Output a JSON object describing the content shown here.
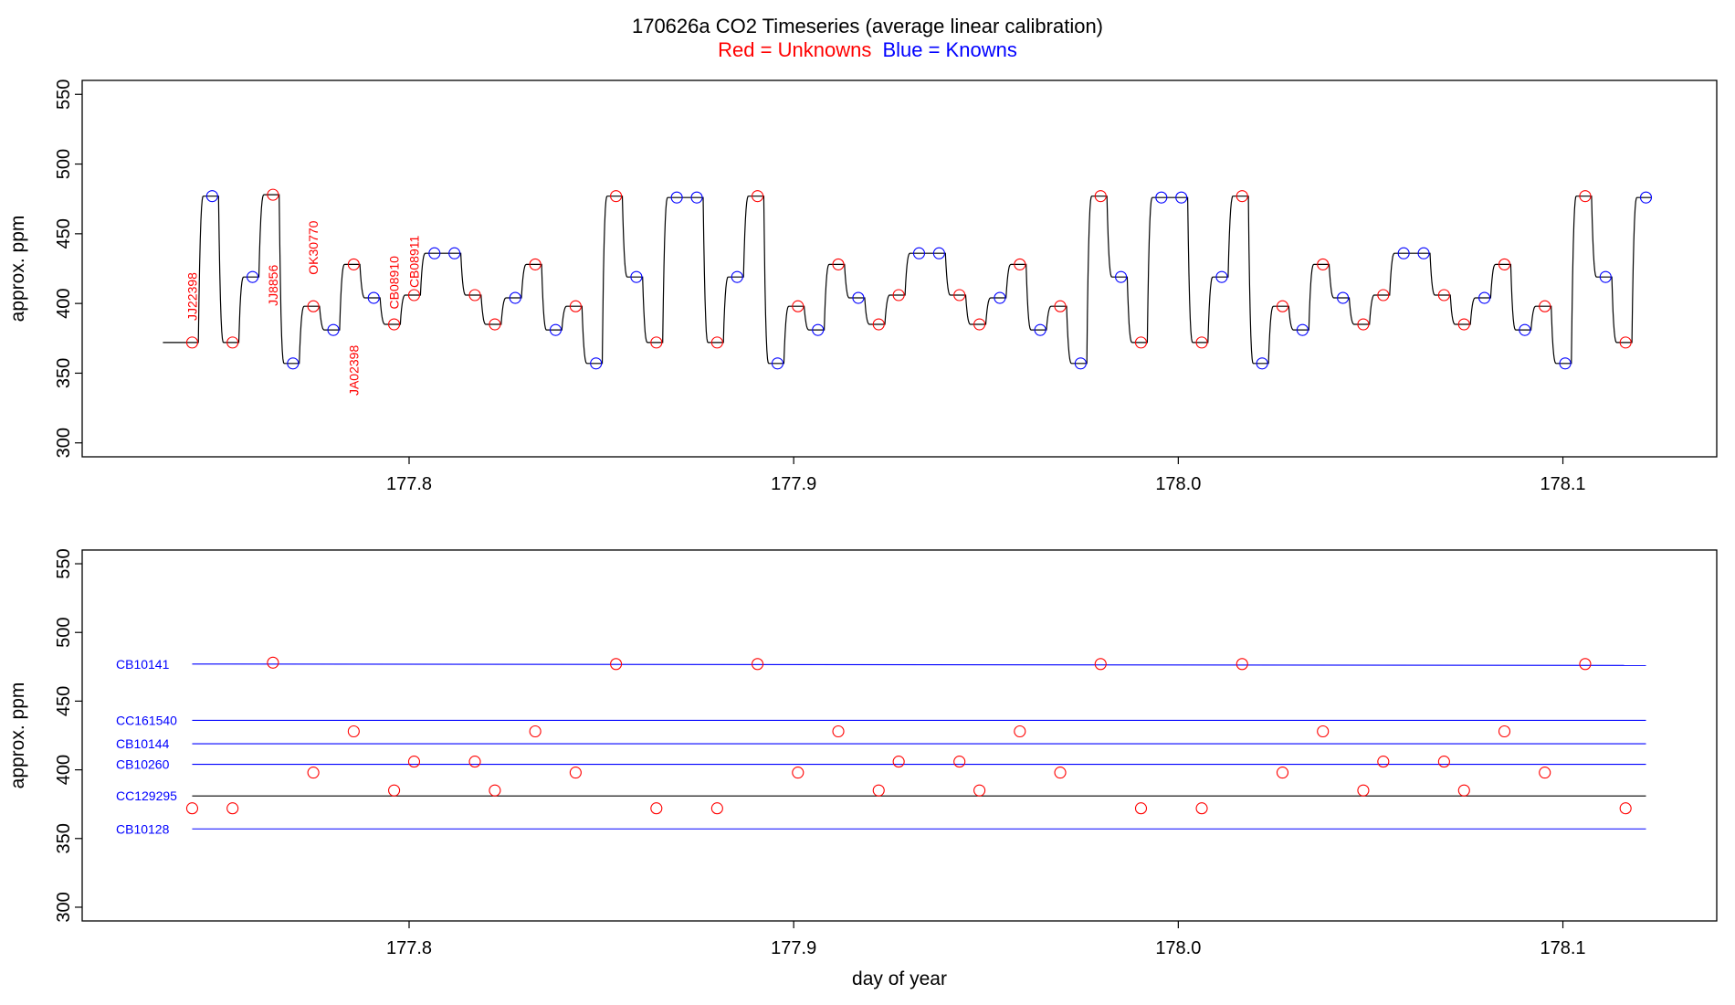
{
  "title": "170626a   CO2 Timeseries (average linear calibration)",
  "subtitle": {
    "unknowns": "Red = Unknowns",
    "knowns": "Blue = Knowns"
  },
  "colors": {
    "unknown": "#ff0000",
    "known": "#0000ff",
    "trace": "#000000",
    "axis": "#000000"
  },
  "chart_data": [
    {
      "type": "line",
      "xlabel": "",
      "ylabel": "approx. ppm",
      "xlim": [
        177.715,
        178.14
      ],
      "ylim": [
        290,
        560
      ],
      "xticks": [
        "177.8",
        "177.9",
        "178.0",
        "178.1"
      ],
      "xtick_values": [
        177.8,
        177.9,
        178.0,
        178.1
      ],
      "yticks": [
        "300",
        "350",
        "400",
        "450",
        "500",
        "550"
      ],
      "ytick_values": [
        300,
        350,
        400,
        450,
        500,
        550
      ],
      "trace_start": 177.736,
      "samples": [
        {
          "x": 177.7436,
          "y": 372,
          "kind": "unknown"
        },
        {
          "x": 177.7488,
          "y": 477,
          "kind": "known"
        },
        {
          "x": 177.7541,
          "y": 372,
          "kind": "unknown"
        },
        {
          "x": 177.7593,
          "y": 419,
          "kind": "known"
        },
        {
          "x": 177.7646,
          "y": 478,
          "kind": "unknown"
        },
        {
          "x": 177.7698,
          "y": 357,
          "kind": "known"
        },
        {
          "x": 177.7751,
          "y": 398,
          "kind": "unknown"
        },
        {
          "x": 177.7803,
          "y": 381,
          "kind": "known"
        },
        {
          "x": 177.7856,
          "y": 428,
          "kind": "unknown"
        },
        {
          "x": 177.7908,
          "y": 404,
          "kind": "known"
        },
        {
          "x": 177.7961,
          "y": 385,
          "kind": "unknown"
        },
        {
          "x": 177.8013,
          "y": 406,
          "kind": "unknown"
        },
        {
          "x": 177.8066,
          "y": 436,
          "kind": "known"
        },
        {
          "x": 177.8118,
          "y": 436,
          "kind": "known"
        },
        {
          "x": 177.8171,
          "y": 406,
          "kind": "unknown"
        },
        {
          "x": 177.8223,
          "y": 385,
          "kind": "unknown"
        },
        {
          "x": 177.8276,
          "y": 404,
          "kind": "known"
        },
        {
          "x": 177.8328,
          "y": 428,
          "kind": "unknown"
        },
        {
          "x": 177.8381,
          "y": 381,
          "kind": "known"
        },
        {
          "x": 177.8433,
          "y": 398,
          "kind": "unknown"
        },
        {
          "x": 177.8486,
          "y": 357,
          "kind": "known"
        },
        {
          "x": 177.8538,
          "y": 477,
          "kind": "unknown"
        },
        {
          "x": 177.8591,
          "y": 419,
          "kind": "known"
        },
        {
          "x": 177.8643,
          "y": 372,
          "kind": "unknown"
        },
        {
          "x": 177.8696,
          "y": 476,
          "kind": "known"
        },
        {
          "x": 177.8748,
          "y": 476,
          "kind": "known"
        },
        {
          "x": 177.8801,
          "y": 372,
          "kind": "unknown"
        },
        {
          "x": 177.8853,
          "y": 419,
          "kind": "known"
        },
        {
          "x": 177.8906,
          "y": 477,
          "kind": "unknown"
        },
        {
          "x": 177.8958,
          "y": 357,
          "kind": "known"
        },
        {
          "x": 177.9011,
          "y": 398,
          "kind": "unknown"
        },
        {
          "x": 177.9063,
          "y": 381,
          "kind": "known"
        },
        {
          "x": 177.9116,
          "y": 428,
          "kind": "unknown"
        },
        {
          "x": 177.9168,
          "y": 404,
          "kind": "known"
        },
        {
          "x": 177.9221,
          "y": 385,
          "kind": "unknown"
        },
        {
          "x": 177.9273,
          "y": 406,
          "kind": "unknown"
        },
        {
          "x": 177.9326,
          "y": 436,
          "kind": "known"
        },
        {
          "x": 177.9378,
          "y": 436,
          "kind": "known"
        },
        {
          "x": 177.9431,
          "y": 406,
          "kind": "unknown"
        },
        {
          "x": 177.9483,
          "y": 385,
          "kind": "unknown"
        },
        {
          "x": 177.9536,
          "y": 404,
          "kind": "known"
        },
        {
          "x": 177.9588,
          "y": 428,
          "kind": "unknown"
        },
        {
          "x": 177.9641,
          "y": 381,
          "kind": "known"
        },
        {
          "x": 177.9693,
          "y": 398,
          "kind": "unknown"
        },
        {
          "x": 177.9746,
          "y": 357,
          "kind": "known"
        },
        {
          "x": 177.9798,
          "y": 477,
          "kind": "unknown"
        },
        {
          "x": 177.9851,
          "y": 419,
          "kind": "known"
        },
        {
          "x": 177.9903,
          "y": 372,
          "kind": "unknown"
        },
        {
          "x": 177.9956,
          "y": 476,
          "kind": "known"
        },
        {
          "x": 178.0008,
          "y": 476,
          "kind": "known"
        },
        {
          "x": 178.0061,
          "y": 372,
          "kind": "unknown"
        },
        {
          "x": 178.0113,
          "y": 419,
          "kind": "known"
        },
        {
          "x": 178.0166,
          "y": 477,
          "kind": "unknown"
        },
        {
          "x": 178.0218,
          "y": 357,
          "kind": "known"
        },
        {
          "x": 178.0271,
          "y": 398,
          "kind": "unknown"
        },
        {
          "x": 178.0323,
          "y": 381,
          "kind": "known"
        },
        {
          "x": 178.0376,
          "y": 428,
          "kind": "unknown"
        },
        {
          "x": 178.0428,
          "y": 404,
          "kind": "known"
        },
        {
          "x": 178.0481,
          "y": 385,
          "kind": "unknown"
        },
        {
          "x": 178.0533,
          "y": 406,
          "kind": "unknown"
        },
        {
          "x": 178.0586,
          "y": 436,
          "kind": "known"
        },
        {
          "x": 178.0638,
          "y": 436,
          "kind": "known"
        },
        {
          "x": 178.0691,
          "y": 406,
          "kind": "unknown"
        },
        {
          "x": 178.0743,
          "y": 385,
          "kind": "unknown"
        },
        {
          "x": 178.0796,
          "y": 404,
          "kind": "known"
        },
        {
          "x": 178.0848,
          "y": 428,
          "kind": "unknown"
        },
        {
          "x": 178.0901,
          "y": 381,
          "kind": "known"
        },
        {
          "x": 178.0953,
          "y": 398,
          "kind": "unknown"
        },
        {
          "x": 178.1006,
          "y": 357,
          "kind": "known"
        },
        {
          "x": 178.1058,
          "y": 477,
          "kind": "unknown"
        },
        {
          "x": 178.1111,
          "y": 419,
          "kind": "known"
        },
        {
          "x": 178.1163,
          "y": 372,
          "kind": "unknown"
        },
        {
          "x": 178.1216,
          "y": 476,
          "kind": "known"
        }
      ],
      "annotations": [
        {
          "text": "JJ22398",
          "x": 177.7436,
          "y": 405
        },
        {
          "text": "JJ8856",
          "x": 177.7646,
          "y": 413
        },
        {
          "text": "OK30770",
          "x": 177.7751,
          "y": 440
        },
        {
          "text": "JA02398",
          "x": 177.7856,
          "y": 352
        },
        {
          "text": "CB08910",
          "x": 177.7961,
          "y": 415
        },
        {
          "text": "CB08911",
          "x": 177.8013,
          "y": 430
        }
      ]
    },
    {
      "type": "scatter",
      "xlabel": "day of year",
      "ylabel": "approx. ppm",
      "xlim": [
        177.715,
        178.14
      ],
      "ylim": [
        290,
        560
      ],
      "xticks": [
        "177.8",
        "177.9",
        "178.0",
        "178.1"
      ],
      "xtick_values": [
        177.8,
        177.9,
        178.0,
        178.1
      ],
      "yticks": [
        "300",
        "350",
        "400",
        "450",
        "500",
        "550"
      ],
      "ytick_values": [
        300,
        350,
        400,
        450,
        500,
        550
      ],
      "reference_lines": [
        {
          "name": "CB10141",
          "y": 477,
          "y_end": 476,
          "color": "#0000ff"
        },
        {
          "name": "CC161540",
          "y": 436,
          "y_end": 436,
          "color": "#0000ff"
        },
        {
          "name": "CB10144",
          "y": 419,
          "y_end": 419,
          "color": "#0000ff"
        },
        {
          "name": "CB10260",
          "y": 404,
          "y_end": 404,
          "color": "#0000ff"
        },
        {
          "name": "CC129295",
          "y": 381,
          "y_end": 381,
          "color": "#000000"
        },
        {
          "name": "CB10128",
          "y": 357,
          "y_end": 357,
          "color": "#0000ff"
        }
      ],
      "ref_x_range": [
        177.7436,
        178.1216
      ],
      "points": [
        {
          "x": 177.7436,
          "y": 372
        },
        {
          "x": 177.7541,
          "y": 372
        },
        {
          "x": 177.7646,
          "y": 478
        },
        {
          "x": 177.7751,
          "y": 398
        },
        {
          "x": 177.7856,
          "y": 428
        },
        {
          "x": 177.7961,
          "y": 385
        },
        {
          "x": 177.8013,
          "y": 406
        },
        {
          "x": 177.8171,
          "y": 406
        },
        {
          "x": 177.8223,
          "y": 385
        },
        {
          "x": 177.8328,
          "y": 428
        },
        {
          "x": 177.8433,
          "y": 398
        },
        {
          "x": 177.8538,
          "y": 477
        },
        {
          "x": 177.8643,
          "y": 372
        },
        {
          "x": 177.8801,
          "y": 372
        },
        {
          "x": 177.8906,
          "y": 477
        },
        {
          "x": 177.9011,
          "y": 398
        },
        {
          "x": 177.9116,
          "y": 428
        },
        {
          "x": 177.9221,
          "y": 385
        },
        {
          "x": 177.9273,
          "y": 406
        },
        {
          "x": 177.9431,
          "y": 406
        },
        {
          "x": 177.9483,
          "y": 385
        },
        {
          "x": 177.9588,
          "y": 428
        },
        {
          "x": 177.9693,
          "y": 398
        },
        {
          "x": 177.9798,
          "y": 477
        },
        {
          "x": 177.9903,
          "y": 372
        },
        {
          "x": 178.0061,
          "y": 372
        },
        {
          "x": 178.0166,
          "y": 477
        },
        {
          "x": 178.0271,
          "y": 398
        },
        {
          "x": 178.0376,
          "y": 428
        },
        {
          "x": 178.0481,
          "y": 385
        },
        {
          "x": 178.0533,
          "y": 406
        },
        {
          "x": 178.0691,
          "y": 406
        },
        {
          "x": 178.0743,
          "y": 385
        },
        {
          "x": 178.0848,
          "y": 428
        },
        {
          "x": 178.0953,
          "y": 398
        },
        {
          "x": 178.1058,
          "y": 477
        },
        {
          "x": 178.1163,
          "y": 372
        }
      ]
    }
  ]
}
